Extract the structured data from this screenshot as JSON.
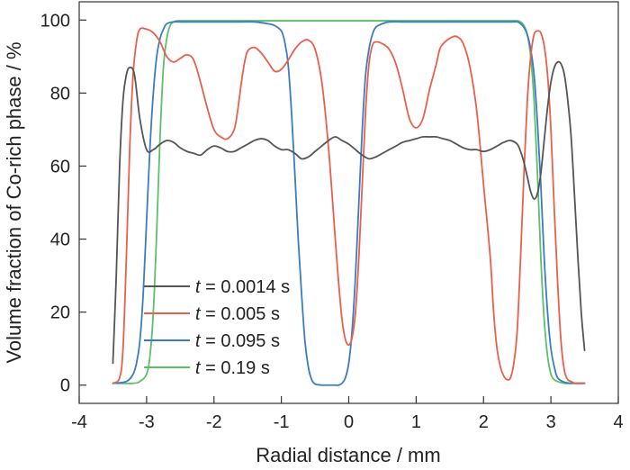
{
  "chart_data": {
    "type": "line",
    "title": "",
    "xlabel": "Radial distance / mm",
    "ylabel": "Volume fraction of Co-rich phase / %",
    "xlim": [
      -4,
      4
    ],
    "ylim": [
      -5,
      105
    ],
    "xticks": [
      -4,
      -3,
      -2,
      -1,
      0,
      1,
      2,
      3,
      4
    ],
    "yticks": [
      0,
      20,
      40,
      60,
      80,
      100
    ],
    "xtick_labels": [
      "-4",
      "-3",
      "-2",
      "-1",
      "0",
      "1",
      "2",
      "3",
      "4"
    ],
    "ytick_labels": [
      "0",
      "20",
      "40",
      "60",
      "80",
      "100"
    ],
    "grid": false,
    "legend_position": "lower-left",
    "series": [
      {
        "name": "t = 0.0014 s",
        "legend_prefix": "t",
        "legend_suffix": " = 0.0014 s",
        "color": "#555555",
        "x": [
          -3.5,
          -3.45,
          -3.4,
          -3.35,
          -3.3,
          -3.25,
          -3.18,
          -3.1,
          -3.0,
          -2.9,
          -2.8,
          -2.7,
          -2.6,
          -2.5,
          -2.4,
          -2.3,
          -2.2,
          -2.1,
          -2.0,
          -1.9,
          -1.8,
          -1.7,
          -1.6,
          -1.5,
          -1.4,
          -1.3,
          -1.2,
          -1.1,
          -1.0,
          -0.9,
          -0.8,
          -0.7,
          -0.6,
          -0.5,
          -0.4,
          -0.3,
          -0.2,
          -0.1,
          0.0,
          0.1,
          0.2,
          0.3,
          0.4,
          0.5,
          0.6,
          0.7,
          0.8,
          0.9,
          1.0,
          1.1,
          1.2,
          1.3,
          1.4,
          1.5,
          1.6,
          1.7,
          1.8,
          1.9,
          2.0,
          2.1,
          2.2,
          2.3,
          2.4,
          2.5,
          2.55,
          2.6,
          2.65,
          2.7,
          2.75,
          2.8,
          2.85,
          2.9,
          2.95,
          3.0,
          3.05,
          3.1,
          3.15,
          3.2,
          3.25,
          3.3,
          3.35,
          3.4,
          3.45,
          3.5
        ],
        "y": [
          6,
          30,
          60,
          78,
          85,
          87,
          85,
          73,
          64.5,
          64.5,
          66,
          67,
          66.5,
          65,
          64,
          63.5,
          63,
          64.5,
          65.5,
          65,
          64,
          64,
          65,
          66,
          67,
          67.5,
          67,
          65.5,
          64.5,
          64.5,
          63.5,
          62,
          62.5,
          64,
          65.5,
          67,
          68,
          67,
          66,
          64.5,
          63,
          62,
          62.5,
          63.5,
          64.5,
          65.5,
          66.5,
          67,
          67.5,
          68,
          68,
          68,
          67.5,
          67,
          66,
          65,
          64.5,
          64.5,
          64,
          64.5,
          65.5,
          66.5,
          67,
          66,
          64,
          61,
          57,
          53,
          51,
          52.5,
          58,
          67,
          76,
          83,
          87,
          88.5,
          88,
          85,
          78,
          68,
          52,
          35,
          20,
          9.5
        ]
      },
      {
        "name": "t = 0.005 s",
        "legend_prefix": "t",
        "legend_suffix": " = 0.005 s",
        "color": "#e8604c",
        "x": [
          -3.5,
          -3.4,
          -3.35,
          -3.3,
          -3.25,
          -3.2,
          -3.15,
          -3.1,
          -3.0,
          -2.9,
          -2.8,
          -2.7,
          -2.6,
          -2.5,
          -2.4,
          -2.3,
          -2.2,
          -2.1,
          -2.0,
          -1.9,
          -1.8,
          -1.7,
          -1.65,
          -1.6,
          -1.55,
          -1.5,
          -1.4,
          -1.3,
          -1.2,
          -1.1,
          -1.0,
          -0.9,
          -0.8,
          -0.7,
          -0.6,
          -0.5,
          -0.4,
          -0.3,
          -0.2,
          -0.15,
          -0.1,
          -0.05,
          0.0,
          0.05,
          0.1,
          0.15,
          0.2,
          0.25,
          0.3,
          0.35,
          0.4,
          0.5,
          0.6,
          0.7,
          0.8,
          0.9,
          1.0,
          1.1,
          1.2,
          1.3,
          1.35,
          1.4,
          1.5,
          1.6,
          1.7,
          1.8,
          1.9,
          2.0,
          2.1,
          2.15,
          2.2,
          2.25,
          2.3,
          2.35,
          2.4,
          2.45,
          2.5,
          2.55,
          2.6,
          2.65,
          2.7,
          2.75,
          2.8,
          2.85,
          2.9,
          2.95,
          3.0,
          3.05,
          3.1,
          3.15,
          3.2,
          3.25,
          3.3,
          3.35,
          3.4,
          3.45,
          3.5
        ],
        "y": [
          0.5,
          2,
          10,
          35,
          65,
          85,
          94,
          97.5,
          97.5,
          96.5,
          94,
          90,
          88.5,
          89.5,
          90.5,
          89,
          83,
          76,
          70,
          68,
          67.5,
          70,
          75,
          82,
          88,
          91.5,
          92.5,
          91,
          88.5,
          86,
          86.5,
          89,
          92,
          94,
          94.5,
          92,
          83,
          65,
          40,
          28,
          18,
          12.5,
          11,
          13,
          20,
          35,
          55,
          75,
          88,
          93,
          94,
          93.5,
          92,
          88,
          81,
          73,
          70.5,
          73,
          81,
          88,
          92,
          93.5,
          95,
          95.5,
          93.5,
          87,
          75,
          55,
          35,
          20,
          10,
          5,
          2.5,
          1.5,
          2,
          6,
          15,
          35,
          58,
          78,
          90,
          96,
          97,
          96.5,
          93,
          85,
          70,
          48,
          28,
          12,
          4,
          1.5,
          1,
          0.5,
          0.5,
          0.5,
          0.5
        ]
      },
      {
        "name": "t = 0.095 s",
        "legend_prefix": "t",
        "legend_suffix": " = 0.095 s",
        "color": "#3a7cc4",
        "x": [
          -3.5,
          -3.3,
          -3.2,
          -3.15,
          -3.1,
          -3.05,
          -3.0,
          -2.95,
          -2.9,
          -2.85,
          -2.8,
          -2.75,
          -2.7,
          -2.6,
          -2.5,
          -2.4,
          -2.2,
          -2.0,
          -1.8,
          -1.6,
          -1.4,
          -1.2,
          -1.1,
          -1.0,
          -0.95,
          -0.9,
          -0.85,
          -0.8,
          -0.75,
          -0.7,
          -0.65,
          -0.6,
          -0.55,
          -0.5,
          -0.45,
          -0.4,
          -0.35,
          -0.3,
          -0.25,
          -0.2,
          -0.15,
          -0.1,
          -0.05,
          0.0,
          0.05,
          0.1,
          0.15,
          0.2,
          0.25,
          0.3,
          0.35,
          0.4,
          0.5,
          0.6,
          0.8,
          1.0,
          1.2,
          1.5,
          1.8,
          2.0,
          2.2,
          2.4,
          2.5,
          2.55,
          2.6,
          2.65,
          2.7,
          2.75,
          2.8,
          2.85,
          2.9,
          2.95,
          3.0,
          3.05,
          3.1,
          3.2,
          3.3,
          3.4,
          3.5
        ],
        "y": [
          0.5,
          1,
          3,
          6,
          12,
          25,
          45,
          65,
          80,
          90,
          95,
          97.5,
          99,
          99.5,
          99.5,
          99.5,
          99.5,
          99.5,
          99.5,
          99.5,
          99.5,
          99,
          98.5,
          97,
          94,
          88,
          75,
          58,
          40,
          25,
          12,
          5,
          1.5,
          0.3,
          0.1,
          0,
          0,
          0,
          0,
          0,
          0,
          0.5,
          2,
          6,
          15,
          30,
          50,
          70,
          85,
          92,
          96,
          98,
          99,
          99.5,
          99.5,
          99.5,
          99.5,
          99.5,
          99.5,
          99.5,
          99.5,
          99.5,
          99.5,
          99,
          98,
          96,
          92,
          85,
          72,
          55,
          35,
          20,
          10,
          5,
          2,
          0.8,
          0.5,
          0.5,
          0.5
        ]
      },
      {
        "name": "t = 0.19 s",
        "legend_prefix": "t",
        "legend_suffix": " = 0.19 s",
        "color": "#5dbf6a",
        "x": [
          -3.5,
          -3.2,
          -3.1,
          -3.0,
          -2.95,
          -2.9,
          -2.85,
          -2.8,
          -2.75,
          -2.7,
          -2.65,
          -2.6,
          -2.55,
          -2.5,
          -2.0,
          -1.0,
          0.0,
          1.0,
          2.0,
          2.4,
          2.5,
          2.55,
          2.6,
          2.65,
          2.7,
          2.75,
          2.8,
          2.85,
          2.9,
          2.95,
          3.0,
          3.05,
          3.1,
          3.2,
          3.3,
          3.5
        ],
        "y": [
          0.5,
          0.5,
          1,
          3,
          8,
          20,
          42,
          68,
          87,
          95,
          98.5,
          99.5,
          99.8,
          99.8,
          99.8,
          99.8,
          99.8,
          99.8,
          99.8,
          99.8,
          99.8,
          99.5,
          98.5,
          96,
          90,
          78,
          58,
          35,
          18,
          8,
          3,
          1.5,
          1,
          0.5,
          0.5,
          0.5
        ]
      }
    ]
  }
}
